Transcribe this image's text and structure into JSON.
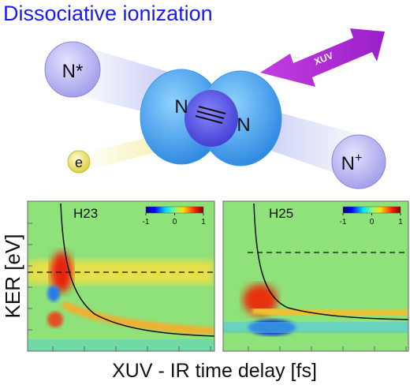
{
  "title": "Dissociative ionization",
  "illustration": {
    "atoms": [
      "N*",
      "N",
      "N",
      "e"
    ],
    "ion": {
      "text": "N",
      "superscript": "+"
    },
    "pulse": "XUV"
  },
  "panels": [
    {
      "label": "H23",
      "colorbar": {
        "lim": [
          -1,
          1
        ],
        "ticks": [
          -1,
          0,
          1
        ]
      }
    },
    {
      "label": "H25",
      "colorbar": {
        "lim": [
          -1,
          1
        ],
        "ticks": [
          -1,
          0,
          1
        ]
      }
    }
  ],
  "y_label": "KER [eV]",
  "x_label": "XUV - IR time delay [fs]"
}
